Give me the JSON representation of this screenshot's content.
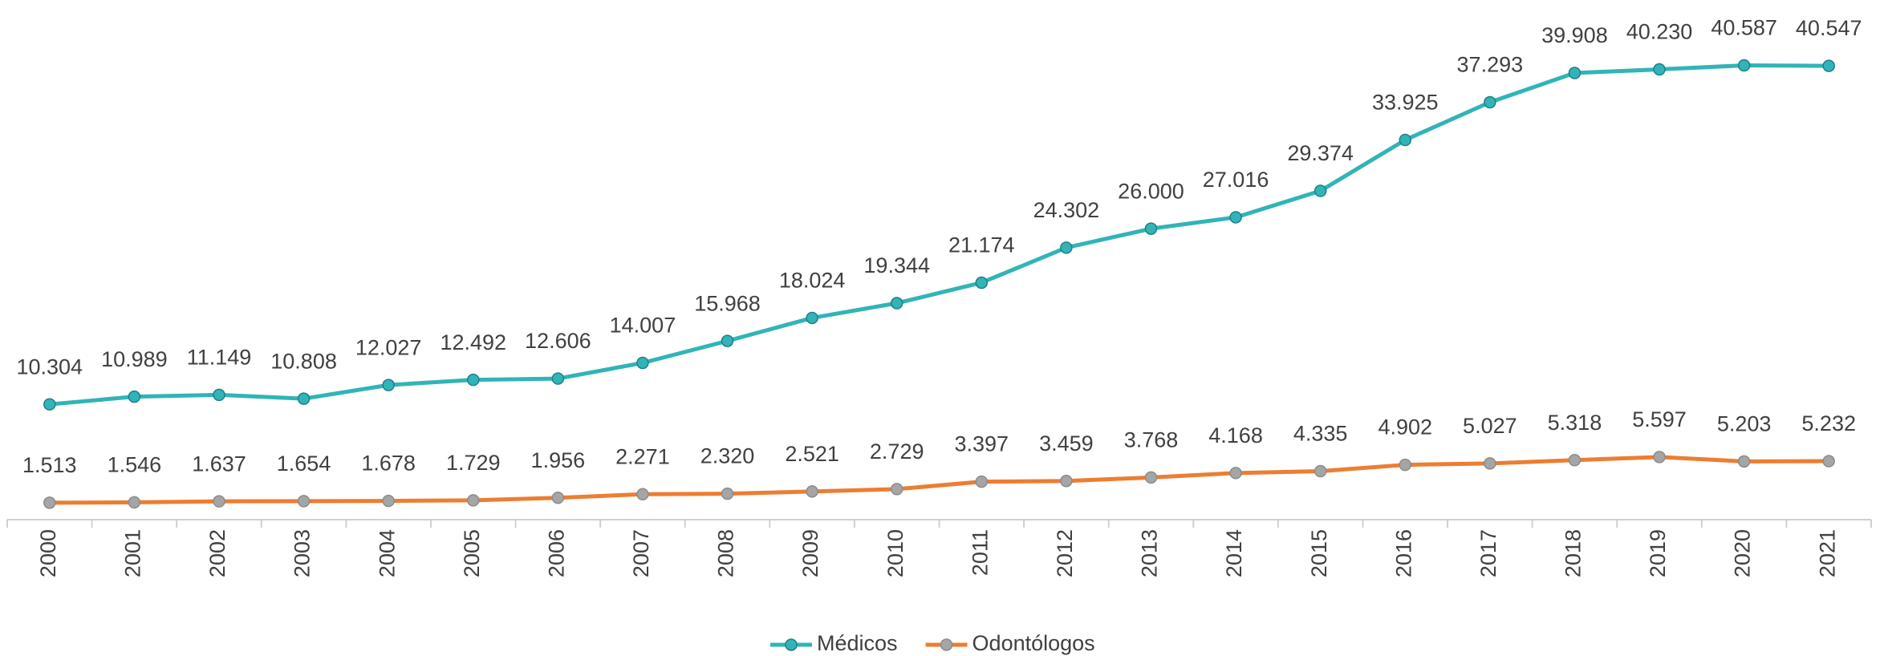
{
  "chart_data": {
    "type": "line",
    "categories": [
      "2000",
      "2001",
      "2002",
      "2003",
      "2004",
      "2005",
      "2006",
      "2007",
      "2008",
      "2009",
      "2010",
      "2011",
      "2012",
      "2013",
      "2014",
      "2015",
      "2016",
      "2017",
      "2018",
      "2019",
      "2020",
      "2021"
    ],
    "ylim": [
      0,
      46000
    ],
    "legend": "bottom",
    "series": [
      {
        "name": "Médicos",
        "color": "#31b4b7",
        "marker_color": "#31b4b7",
        "values": [
          10304,
          10989,
          11149,
          10808,
          12027,
          12492,
          12606,
          14007,
          15968,
          18024,
          19344,
          21174,
          24302,
          26000,
          27016,
          29374,
          33925,
          37293,
          39908,
          40230,
          40587,
          40547
        ],
        "value_labels": [
          "10.304",
          "10.989",
          "11.149",
          "10.808",
          "12.027",
          "12.492",
          "12.606",
          "14.007",
          "15.968",
          "18.024",
          "19.344",
          "21.174",
          "24.302",
          "26.000",
          "27.016",
          "29.374",
          "33.925",
          "37.293",
          "39.908",
          "40.230",
          "40.587",
          "40.547"
        ]
      },
      {
        "name": "Odontólogos",
        "color": "#ed7d31",
        "marker_color": "#a5a5a5",
        "values": [
          1513,
          1546,
          1637,
          1654,
          1678,
          1729,
          1956,
          2271,
          2320,
          2521,
          2729,
          3397,
          3459,
          3768,
          4168,
          4335,
          4902,
          5027,
          5318,
          5597,
          5203,
          5232
        ],
        "value_labels": [
          "1.513",
          "1.546",
          "1.637",
          "1.654",
          "1.678",
          "1.729",
          "1.956",
          "2.271",
          "2.320",
          "2.521",
          "2.729",
          "3.397",
          "3.459",
          "3.768",
          "4.168",
          "4.335",
          "4.902",
          "5.027",
          "5.318",
          "5.597",
          "5.203",
          "5.232"
        ]
      }
    ]
  }
}
